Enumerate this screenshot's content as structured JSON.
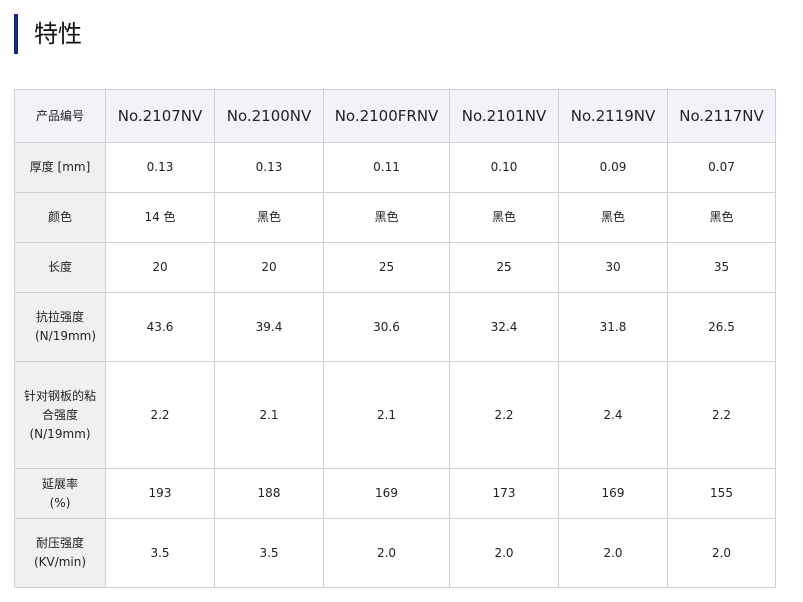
{
  "title": "特性",
  "columns": [
    "产品编号",
    "No.2107NV",
    "No.2100NV",
    "No.2100FRNV",
    "No.2101NV",
    "No.2119NV",
    "No.2117NV"
  ],
  "rows": [
    {
      "label": "厚度 [mm]",
      "values": [
        "0.13",
        "0.13",
        "0.11",
        "0.10",
        "0.09",
        "0.07"
      ]
    },
    {
      "label": "颜色",
      "values": [
        "14 色",
        "黑色",
        "黑色",
        "黑色",
        "黑色",
        "黑色"
      ]
    },
    {
      "label": "长度",
      "values": [
        "20",
        "20",
        "25",
        "25",
        "30",
        "35"
      ]
    },
    {
      "label": "抗拉强度 (N/19mm)",
      "values": [
        "43.6",
        "39.4",
        "30.6",
        "32.4",
        "31.8",
        "26.5"
      ]
    },
    {
      "label": "针对钢板的粘合强度 (N/19mm)",
      "values": [
        "2.2",
        "2.1",
        "2.1",
        "2.2",
        "2.4",
        "2.2"
      ]
    },
    {
      "label": "延展率 (%)",
      "values": [
        "193",
        "188",
        "169",
        "173",
        "169",
        "155"
      ]
    },
    {
      "label": "耐压强度 (KV/min)",
      "values": [
        "3.5",
        "3.5",
        "2.0",
        "2.0",
        "2.0",
        "2.0"
      ]
    }
  ]
}
